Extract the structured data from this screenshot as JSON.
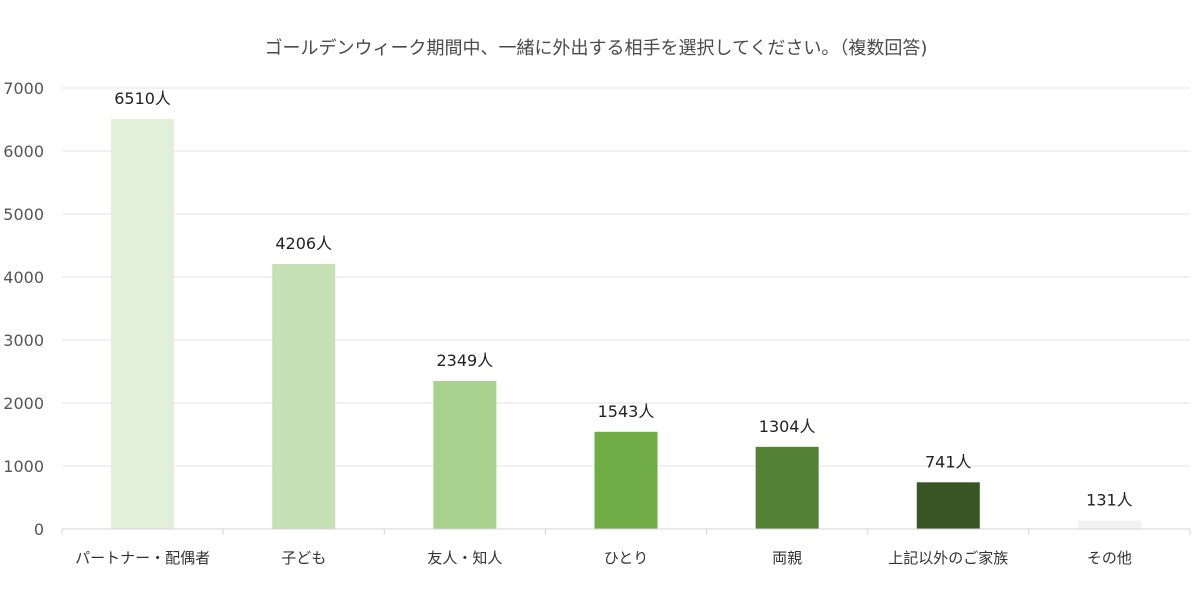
{
  "chart_data": {
    "type": "bar",
    "title": "ゴールデンウィーク期間中、一緒に外出する相手を選択してください。（複数回答)",
    "categories": [
      "パートナー・配偶者",
      "子ども",
      "友人・知人",
      "ひとり",
      "両親",
      "上記以外のご家族",
      "その他"
    ],
    "values": [
      6510,
      4206,
      2349,
      1543,
      1304,
      741,
      131
    ],
    "data_labels": [
      "6510人",
      "4206人",
      "2349人",
      "1543人",
      "1304人",
      "741人",
      "131人"
    ],
    "bar_colors": [
      "#e2efd9",
      "#c5e0b3",
      "#a9d18e",
      "#70ad47",
      "#538135",
      "#375623",
      "#f2f2f2"
    ],
    "yticks": [
      0,
      1000,
      2000,
      3000,
      4000,
      5000,
      6000,
      7000
    ],
    "ylim": [
      0,
      7000
    ],
    "grid": true,
    "legend": "none"
  }
}
